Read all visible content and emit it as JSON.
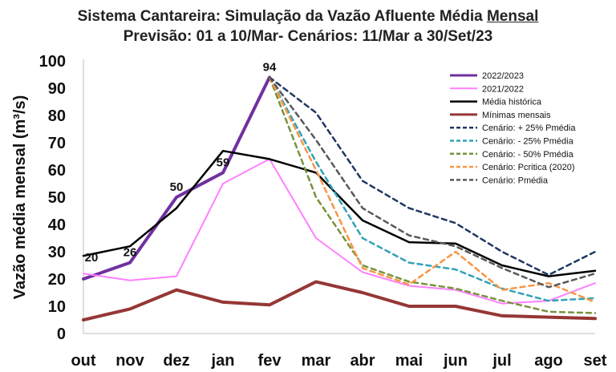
{
  "title_line1_pre": "Sistema Cantareira: Simulação da Vazão Afluente Média ",
  "title_line1_u": "Mensal",
  "title_line2": "Previsão: 01 a 10/Mar- Cenários: 11/Mar a 30/Set/23",
  "chart_data": {
    "type": "line",
    "ylabel": "Vazão média mensal (m³/s)",
    "ylim": [
      0,
      100
    ],
    "yticks": [
      0,
      10,
      20,
      30,
      40,
      50,
      60,
      70,
      80,
      90,
      100
    ],
    "categories": [
      "out",
      "nov",
      "dez",
      "jan",
      "fev",
      "mar",
      "abr",
      "mai",
      "jun",
      "jul",
      "ago",
      "set"
    ],
    "grid": false,
    "legend": "top-right",
    "series": [
      {
        "name": "2022/2023",
        "color": "#7030a0",
        "width": 4,
        "dash": "",
        "values": [
          20,
          26,
          50,
          59,
          94,
          null,
          null,
          null,
          null,
          null,
          null,
          null
        ]
      },
      {
        "name": "2021/2022",
        "color": "#ff80ff",
        "width": 2,
        "dash": "",
        "values": [
          22,
          19.5,
          21,
          55,
          64,
          35,
          22.5,
          17.5,
          16,
          11,
          12,
          18.5
        ]
      },
      {
        "name": "Média histórica",
        "color": "#000000",
        "width": 2.5,
        "dash": "",
        "values": [
          28.5,
          32,
          46,
          67,
          64,
          59,
          41.5,
          33.5,
          33,
          25,
          21,
          23
        ]
      },
      {
        "name": "Mínimas mensais",
        "color": "#953735",
        "width": 4,
        "dash": "",
        "values": [
          5,
          9,
          16,
          11.5,
          10.5,
          19,
          15,
          10,
          10,
          6.5,
          6,
          5.5
        ]
      },
      {
        "name": "Cenário: + 25% Pmédia",
        "color": "#1f3864",
        "width": 2.5,
        "dash": "6,5",
        "values": [
          null,
          null,
          null,
          null,
          94,
          81,
          56,
          46,
          40.5,
          30,
          21.5,
          30
        ]
      },
      {
        "name": "Cenário: - 25% Pmédia",
        "color": "#31a2b8",
        "width": 2.5,
        "dash": "6,5",
        "values": [
          null,
          null,
          null,
          null,
          94,
          63,
          35,
          26,
          23.5,
          16.5,
          12,
          13
        ]
      },
      {
        "name": "Cenário: - 50% Pmédia",
        "color": "#77933c",
        "width": 2.5,
        "dash": "6,5",
        "values": [
          null,
          null,
          null,
          null,
          94,
          50,
          25,
          19,
          16.5,
          12,
          8,
          7.5
        ]
      },
      {
        "name": "Cenário: Pcritica (2020)",
        "color": "#f79646",
        "width": 2.5,
        "dash": "6,5",
        "values": [
          null,
          null,
          null,
          null,
          94,
          60,
          24,
          18,
          30,
          16,
          18.5,
          11.5
        ]
      },
      {
        "name": "Cenário: Pmédia",
        "color": "#595959",
        "width": 2.5,
        "dash": "6,5",
        "values": [
          null,
          null,
          null,
          null,
          94,
          71,
          46,
          36,
          32,
          24,
          17,
          22
        ]
      }
    ],
    "data_labels": [
      {
        "category": "out",
        "value": 20,
        "text": "20"
      },
      {
        "category": "nov",
        "value": 26,
        "text": "26"
      },
      {
        "category": "dez",
        "value": 50,
        "text": "50"
      },
      {
        "category": "jan",
        "value": 59,
        "text": "59"
      },
      {
        "category": "fev",
        "value": 94,
        "text": "94"
      }
    ]
  }
}
